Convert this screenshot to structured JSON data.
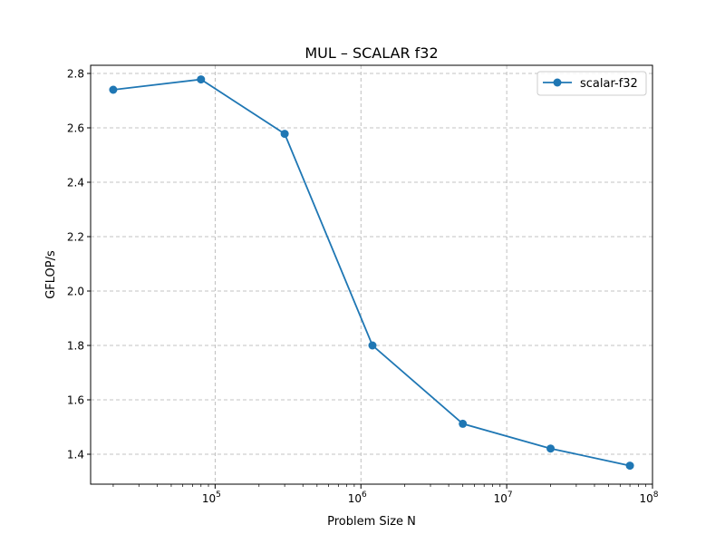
{
  "chart_data": {
    "type": "line",
    "title": "MUL – SCALAR f32",
    "xlabel": "Problem Size N",
    "ylabel": "GFLOP/s",
    "xscale": "log",
    "xlim": [
      14000,
      100000000
    ],
    "ylim": [
      1.29,
      2.83
    ],
    "grid": true,
    "legend_position": "top-right",
    "x_ticks": [
      {
        "value": 100000,
        "base": "10",
        "exp": "5"
      },
      {
        "value": 1000000,
        "base": "10",
        "exp": "6"
      },
      {
        "value": 10000000,
        "base": "10",
        "exp": "7"
      },
      {
        "value": 100000000,
        "base": "10",
        "exp": "8"
      }
    ],
    "y_ticks": [
      {
        "value": 1.4,
        "label": "1.4"
      },
      {
        "value": 1.6,
        "label": "1.6"
      },
      {
        "value": 1.8,
        "label": "1.8"
      },
      {
        "value": 2.0,
        "label": "2.0"
      },
      {
        "value": 2.2,
        "label": "2.2"
      },
      {
        "value": 2.4,
        "label": "2.4"
      },
      {
        "value": 2.6,
        "label": "2.6"
      },
      {
        "value": 2.8,
        "label": "2.8"
      }
    ],
    "series": [
      {
        "name": "scalar-f32",
        "color": "#1f77b4",
        "marker": "circle",
        "x": [
          20000,
          80000,
          300000,
          1200000,
          5000000,
          20000000,
          70000000
        ],
        "y": [
          2.74,
          2.778,
          2.578,
          1.8,
          1.512,
          1.421,
          1.358
        ]
      }
    ]
  }
}
